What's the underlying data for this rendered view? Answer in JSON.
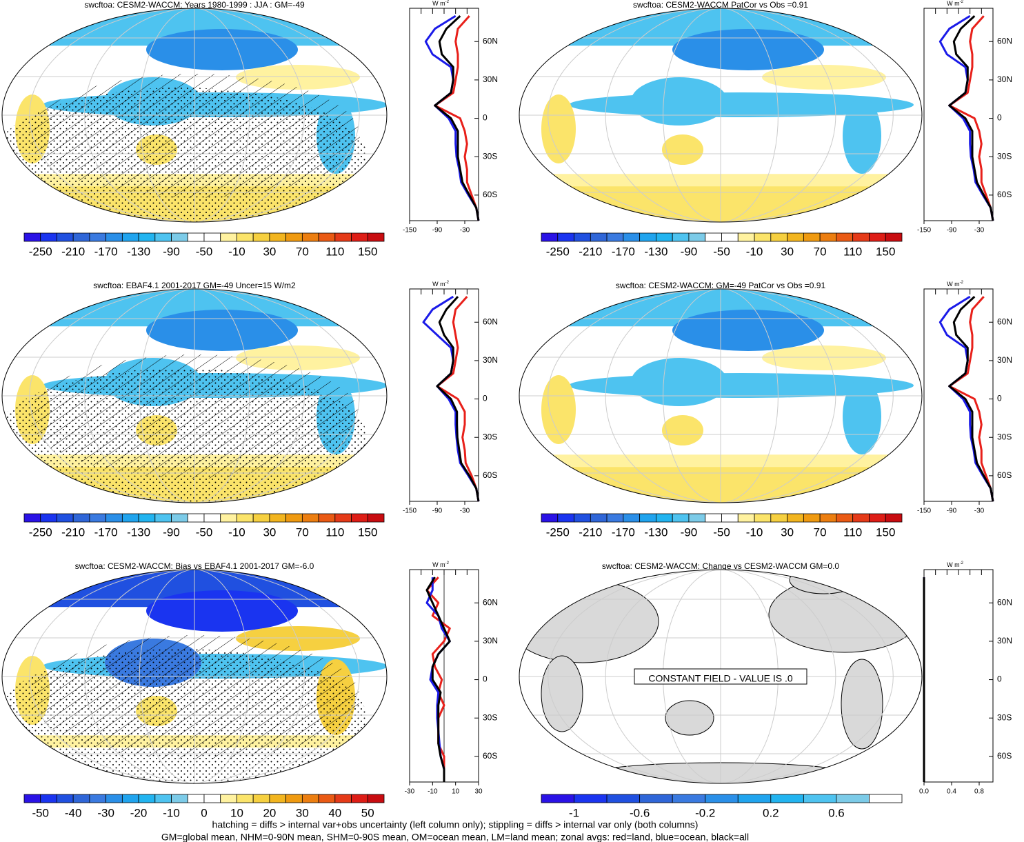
{
  "zonal_unit": "W m",
  "zonal_unit_exp": "-2",
  "zonal_ylim": [
    -80,
    86
  ],
  "zonal_yticks": [
    {
      "value": 60,
      "label": "60N"
    },
    {
      "value": 30,
      "label": "30N"
    },
    0,
    {
      "value": -30,
      "label": "30S"
    },
    {
      "value": -60,
      "label": "60S"
    }
  ],
  "zonal_lat": [
    80,
    70,
    60,
    50,
    40,
    30,
    20,
    10,
    0,
    -10,
    -20,
    -30,
    -40,
    -50,
    -60,
    -70,
    -80
  ],
  "panels": [
    {
      "title": "swcftoa: CESM2-WACCM: Years 1980-1999 : JJA : GM=-49",
      "colorbar": {
        "lim": [
          -270,
          170
        ],
        "ticks": [
          -250,
          -210,
          -170,
          -130,
          -90,
          -50,
          -10,
          30,
          70,
          110,
          150
        ],
        "colors": [
          "#2a12e6",
          "#1a34f0",
          "#2050e0",
          "#2f66d8",
          "#3a7ae0",
          "#2a8fe8",
          "#20a4ee",
          "#22b4f0",
          "#4ec3f0",
          "#7ccbe8",
          "#ffffff",
          "#ffffff",
          "#fff2a0",
          "#fbe46a",
          "#f6d040",
          "#f2b51f",
          "#ef9a10",
          "#ec7e10",
          "#ea5a14",
          "#e53a18",
          "#de1d16",
          "#c80c10"
        ]
      },
      "zonal": {
        "xlim": [
          -150,
          0
        ],
        "xticks": [
          -150,
          -90,
          -30
        ],
        "series": [
          {
            "name": "land",
            "color": "#e8201a",
            "values": [
              -20,
              -45,
              -50,
              -45,
              -45,
              -50,
              -55,
              -95,
              -40,
              -30,
              -25,
              -30,
              -25,
              -25,
              -15,
              -5,
              0
            ]
          },
          {
            "name": "ocean",
            "color": "#1a1ae8",
            "values": [
              -50,
              -95,
              -115,
              -100,
              -60,
              -55,
              -60,
              -95,
              -65,
              -50,
              -50,
              -48,
              -42,
              -38,
              -22,
              -5,
              0
            ]
          },
          {
            "name": "all",
            "color": "#000000",
            "values": [
              -40,
              -70,
              -85,
              -80,
              -55,
              -55,
              -60,
              -95,
              -60,
              -45,
              -45,
              -45,
              -40,
              -35,
              -20,
              -5,
              0
            ]
          }
        ]
      }
    },
    {
      "title": "swcftoa: CESM2-WACCM PatCor vs Obs =0.91",
      "colorbar": {
        "lim": [
          -270,
          170
        ],
        "ticks": [
          -250,
          -210,
          -170,
          -130,
          -90,
          -50,
          -10,
          30,
          70,
          110,
          150
        ],
        "colors": [
          "#2a12e6",
          "#1a34f0",
          "#2050e0",
          "#2f66d8",
          "#3a7ae0",
          "#2a8fe8",
          "#20a4ee",
          "#22b4f0",
          "#4ec3f0",
          "#7ccbe8",
          "#ffffff",
          "#ffffff",
          "#fff2a0",
          "#fbe46a",
          "#f6d040",
          "#f2b51f",
          "#ef9a10",
          "#ec7e10",
          "#ea5a14",
          "#e53a18",
          "#de1d16",
          "#c80c10"
        ]
      },
      "zonal": {
        "xlim": [
          -150,
          0
        ],
        "xticks": [
          -150,
          -90,
          -30
        ],
        "series": [
          {
            "name": "land",
            "color": "#e8201a",
            "values": [
              -20,
              -45,
              -50,
              -45,
              -45,
              -50,
              -55,
              -95,
              -40,
              -30,
              -25,
              -30,
              -25,
              -25,
              -15,
              -5,
              0
            ]
          },
          {
            "name": "ocean",
            "color": "#1a1ae8",
            "values": [
              -50,
              -95,
              -115,
              -100,
              -60,
              -55,
              -60,
              -95,
              -65,
              -50,
              -50,
              -48,
              -42,
              -38,
              -22,
              -5,
              0
            ]
          },
          {
            "name": "all",
            "color": "#000000",
            "values": [
              -40,
              -70,
              -85,
              -80,
              -55,
              -55,
              -60,
              -95,
              -60,
              -45,
              -45,
              -45,
              -40,
              -35,
              -20,
              -5,
              0
            ]
          }
        ]
      }
    },
    {
      "title": "swcftoa: EBAF4.1 2001-2017 GM=-49 Uncer=15 W/m2",
      "colorbar": {
        "lim": [
          -270,
          170
        ],
        "ticks": [
          -250,
          -210,
          -170,
          -130,
          -90,
          -50,
          -10,
          30,
          70,
          110,
          150
        ],
        "colors": [
          "#2a12e6",
          "#1a34f0",
          "#2050e0",
          "#2f66d8",
          "#3a7ae0",
          "#2a8fe8",
          "#20a4ee",
          "#22b4f0",
          "#4ec3f0",
          "#7ccbe8",
          "#ffffff",
          "#ffffff",
          "#fff2a0",
          "#fbe46a",
          "#f6d040",
          "#f2b51f",
          "#ef9a10",
          "#ec7e10",
          "#ea5a14",
          "#e53a18",
          "#de1d16",
          "#c80c10"
        ]
      },
      "zonal": {
        "xlim": [
          -150,
          0
        ],
        "xticks": [
          -150,
          -90,
          -30
        ],
        "series": [
          {
            "name": "land",
            "color": "#e8201a",
            "values": [
              -25,
              -50,
              -55,
              -50,
              -45,
              -50,
              -55,
              -90,
              -45,
              -30,
              -30,
              -35,
              -30,
              -28,
              -15,
              -5,
              0
            ]
          },
          {
            "name": "ocean",
            "color": "#1a1ae8",
            "values": [
              -55,
              -100,
              -120,
              -90,
              -60,
              -55,
              -60,
              -90,
              -65,
              -50,
              -50,
              -48,
              -45,
              -40,
              -22,
              -5,
              0
            ]
          },
          {
            "name": "all",
            "color": "#000000",
            "values": [
              -45,
              -70,
              -85,
              -75,
              -55,
              -55,
              -60,
              -90,
              -60,
              -47,
              -47,
              -46,
              -42,
              -38,
              -20,
              -5,
              0
            ]
          }
        ]
      }
    },
    {
      "title": "swcftoa: CESM2-WACCM: GM=-49 PatCor vs Obs =0.91",
      "colorbar": {
        "lim": [
          -270,
          170
        ],
        "ticks": [
          -250,
          -210,
          -170,
          -130,
          -90,
          -50,
          -10,
          30,
          70,
          110,
          150
        ],
        "colors": [
          "#2a12e6",
          "#1a34f0",
          "#2050e0",
          "#2f66d8",
          "#3a7ae0",
          "#2a8fe8",
          "#20a4ee",
          "#22b4f0",
          "#4ec3f0",
          "#7ccbe8",
          "#ffffff",
          "#ffffff",
          "#fff2a0",
          "#fbe46a",
          "#f6d040",
          "#f2b51f",
          "#ef9a10",
          "#ec7e10",
          "#ea5a14",
          "#e53a18",
          "#de1d16",
          "#c80c10"
        ]
      },
      "zonal": {
        "xlim": [
          -150,
          0
        ],
        "xticks": [
          -150,
          -90,
          -30
        ],
        "series": [
          {
            "name": "land",
            "color": "#e8201a",
            "values": [
              -20,
              -45,
              -50,
              -45,
              -45,
              -50,
              -55,
              -95,
              -40,
              -30,
              -25,
              -30,
              -25,
              -25,
              -15,
              -5,
              0
            ]
          },
          {
            "name": "ocean",
            "color": "#1a1ae8",
            "values": [
              -50,
              -95,
              -115,
              -100,
              -60,
              -55,
              -60,
              -95,
              -65,
              -50,
              -50,
              -48,
              -42,
              -38,
              -22,
              -5,
              0
            ]
          },
          {
            "name": "all",
            "color": "#000000",
            "values": [
              -40,
              -70,
              -85,
              -80,
              -55,
              -55,
              -60,
              -95,
              -60,
              -45,
              -45,
              -45,
              -40,
              -35,
              -20,
              -5,
              0
            ]
          }
        ]
      }
    },
    {
      "title": "swcftoa: CESM2-WACCM: Bias vs EBAF4.1 2001-2017 GM=-6.0",
      "colorbar": {
        "lim": [
          -55,
          55
        ],
        "ticks": [
          -50,
          -40,
          -30,
          -20,
          -10,
          0,
          10,
          20,
          30,
          40,
          50
        ],
        "colors": [
          "#2a12e6",
          "#1a34f0",
          "#2050e0",
          "#2f66d8",
          "#3a7ae0",
          "#2a8fe8",
          "#20a4ee",
          "#22b4f0",
          "#4ec3f0",
          "#7ccbe8",
          "#ffffff",
          "#ffffff",
          "#fff2a0",
          "#fbe46a",
          "#f6d040",
          "#f2b51f",
          "#ef9a10",
          "#ec7e10",
          "#ea5a14",
          "#e53a18",
          "#de1d16",
          "#c80c10"
        ]
      },
      "zonal": {
        "xlim": [
          -30,
          30
        ],
        "xticks": [
          -30,
          -10,
          10,
          30
        ],
        "series": [
          {
            "name": "land",
            "color": "#e8201a",
            "values": [
              -5,
              -15,
              -5,
              -10,
              5,
              0,
              -10,
              -8,
              -2,
              -5,
              0,
              -5,
              -5,
              -5,
              0,
              0,
              0
            ]
          },
          {
            "name": "ocean",
            "color": "#1a1ae8",
            "values": [
              -10,
              -10,
              -15,
              -5,
              -2,
              5,
              -5,
              -10,
              -12,
              -5,
              -6,
              -6,
              -5,
              -4,
              -3,
              0,
              0
            ]
          },
          {
            "name": "all",
            "color": "#000000",
            "values": [
              -8,
              -15,
              -10,
              -5,
              0,
              5,
              -5,
              -10,
              -10,
              -3,
              -5,
              -5,
              -5,
              -5,
              -3,
              0,
              0
            ]
          }
        ]
      }
    },
    {
      "title": "swcftoa: CESM2-WACCM: Change vs CESM2-WACCM GM=0.0",
      "note": "CONSTANT FIELD - VALUE IS .0",
      "colorbar": {
        "lim": [
          -1.2,
          1
        ],
        "ticks": [
          -1,
          -0.6,
          -0.2,
          0.2,
          0.6
        ],
        "colors": [
          "#2a12e6",
          "#1a34f0",
          "#2050e0",
          "#2f66d8",
          "#3a7ae0",
          "#2a8fe8",
          "#20a4ee",
          "#22b4f0",
          "#4ec3f0",
          "#7ccbe8",
          "#ffffff"
        ]
      },
      "zonal": {
        "xlim": [
          0,
          1
        ],
        "xticks": [
          {
            "value": 0,
            "label": "0.0"
          },
          0.4,
          0.8
        ],
        "series": [
          {
            "name": "land",
            "color": "#e8201a",
            "values": [
              0,
              0,
              0,
              0,
              0,
              0,
              0,
              0,
              0,
              0,
              0,
              0,
              0,
              0,
              0,
              0,
              0
            ]
          },
          {
            "name": "ocean",
            "color": "#1a1ae8",
            "values": [
              0,
              0,
              0,
              0,
              0,
              0,
              0,
              0,
              0,
              0,
              0,
              0,
              0,
              0,
              0,
              0,
              0
            ]
          },
          {
            "name": "all",
            "color": "#000000",
            "values": [
              0,
              0,
              0,
              0,
              0,
              0,
              0,
              0,
              0,
              0,
              0,
              0,
              0,
              0,
              0,
              0,
              0
            ]
          }
        ]
      }
    }
  ],
  "footer": [
    "hatching = diffs > internal var+obs uncertainty (left column only); stippling = diffs > internal var only (both columns)",
    "GM=global mean, NHM=0-90N mean, SHM=0-90S mean, OM=ocean mean, LM=land mean; zonal avgs: red=land, blue=ocean, black=all"
  ]
}
